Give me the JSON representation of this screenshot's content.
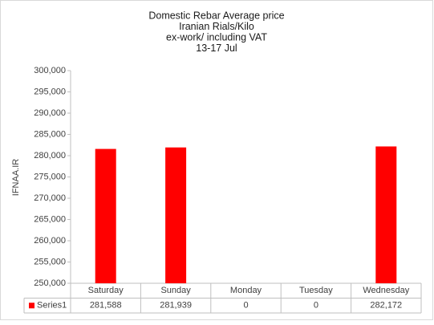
{
  "chart_data": {
    "type": "bar",
    "title": [
      "Domestic Rebar Average  price",
      "Iranian Rials/Kilo",
      "ex-work/ including VAT",
      "13-17 Jul"
    ],
    "y_label": "IFNAA.IR",
    "categories": [
      "Saturday",
      "Sunday",
      "Monday",
      "Tuesday",
      "Wednesday"
    ],
    "series": [
      {
        "name": "Series1",
        "color": "#ff0000",
        "values": [
          281588,
          281939,
          0,
          0,
          282172
        ],
        "value_labels": [
          "281,588",
          "281,939",
          "0",
          "0",
          "282,172"
        ]
      }
    ],
    "ylim": [
      250000,
      300000
    ],
    "yticks": [
      {
        "value": 250000,
        "label": "250,000"
      },
      {
        "value": 255000,
        "label": "255,000"
      },
      {
        "value": 260000,
        "label": "260,000"
      },
      {
        "value": 265000,
        "label": "265,000"
      },
      {
        "value": 270000,
        "label": "270,000"
      },
      {
        "value": 275000,
        "label": "275,000"
      },
      {
        "value": 280000,
        "label": "280,000"
      },
      {
        "value": 285000,
        "label": "285,000"
      },
      {
        "value": 290000,
        "label": "290,000"
      },
      {
        "value": 295000,
        "label": "295,000"
      },
      {
        "value": 300000,
        "label": "300,000"
      }
    ],
    "grid": false
  }
}
